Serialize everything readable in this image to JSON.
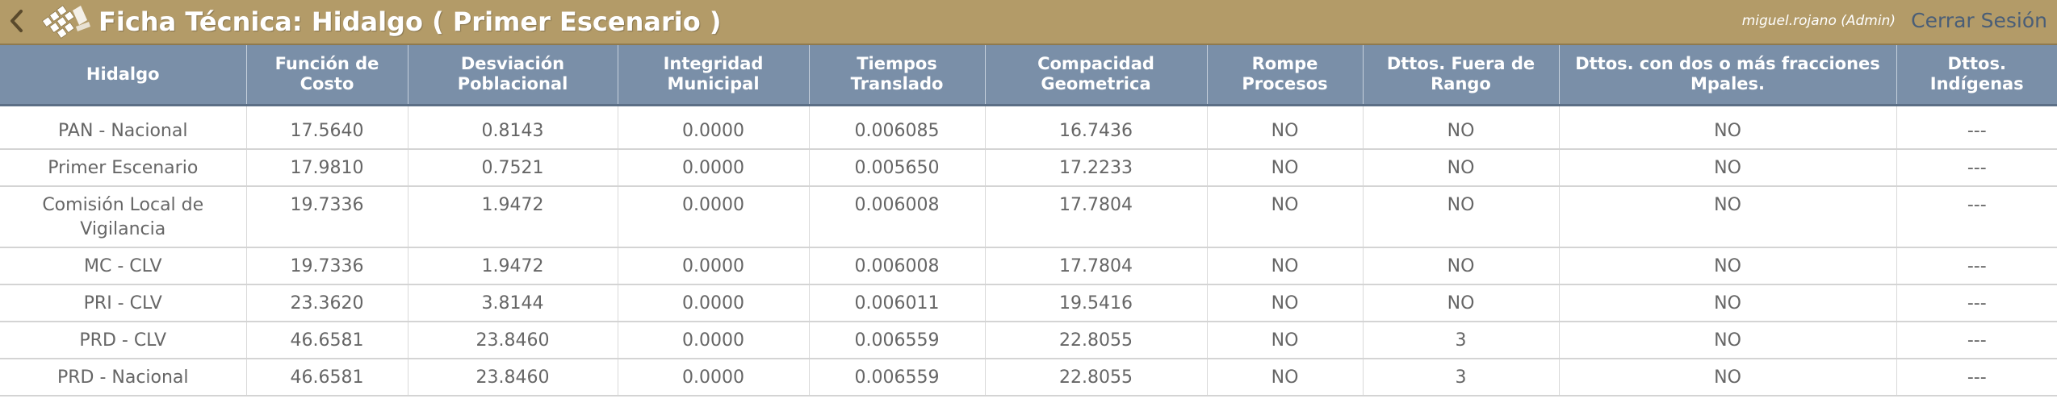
{
  "header": {
    "title": "Ficha Técnica: Hidalgo ( Primer Escenario )",
    "user": "miguel.rojano (Admin)",
    "logout_label": "Cerrar Sesión",
    "back_icon": "chevron-left-icon",
    "logo_icon": "ballot-logo-icon",
    "colors": {
      "bar": "#b39b68",
      "logout": "#4a5e77"
    }
  },
  "table": {
    "header_color": "#7a8fa8",
    "columns": [
      "Hidalgo",
      "Función de Costo",
      "Desviación Poblacional",
      "Integridad Municipal",
      "Tiempos Translado",
      "Compacidad Geometrica",
      "Rompe Procesos",
      "Dttos. Fuera de Rango",
      "Dttos. con dos o más fracciones Mpales.",
      "Dttos. Indígenas"
    ],
    "rows": [
      [
        "PAN - Nacional",
        "17.5640",
        "0.8143",
        "0.0000",
        "0.006085",
        "16.7436",
        "NO",
        "NO",
        "NO",
        "---"
      ],
      [
        "Primer Escenario",
        "17.9810",
        "0.7521",
        "0.0000",
        "0.005650",
        "17.2233",
        "NO",
        "NO",
        "NO",
        "---"
      ],
      [
        "Comisión Local de Vigilancia",
        "19.7336",
        "1.9472",
        "0.0000",
        "0.006008",
        "17.7804",
        "NO",
        "NO",
        "NO",
        "---"
      ],
      [
        "MC - CLV",
        "19.7336",
        "1.9472",
        "0.0000",
        "0.006008",
        "17.7804",
        "NO",
        "NO",
        "NO",
        "---"
      ],
      [
        "PRI - CLV",
        "23.3620",
        "3.8144",
        "0.0000",
        "0.006011",
        "19.5416",
        "NO",
        "NO",
        "NO",
        "---"
      ],
      [
        "PRD - CLV",
        "46.6581",
        "23.8460",
        "0.0000",
        "0.006559",
        "22.8055",
        "NO",
        "3",
        "NO",
        "---"
      ],
      [
        "PRD - Nacional",
        "46.6581",
        "23.8460",
        "0.0000",
        "0.006559",
        "22.8055",
        "NO",
        "3",
        "NO",
        "---"
      ]
    ]
  }
}
